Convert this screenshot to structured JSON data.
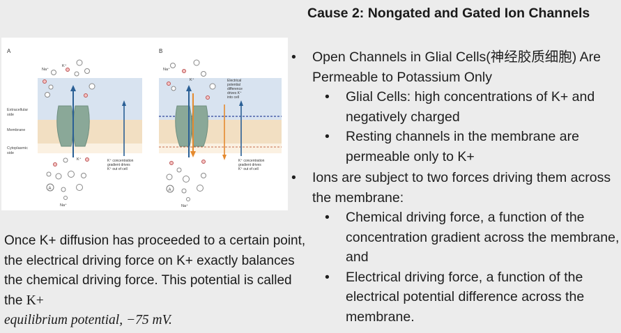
{
  "title": "Cause 2: Nongated and Gated Ion Channels",
  "bullets": [
    {
      "level": 1,
      "text": "Open Channels in Glial Cells(神经胶质细胞) Are Permeable to Potassium Only"
    },
    {
      "level": 2,
      "text": "Glial Cells: high concentrations of K+ and negatively charged"
    },
    {
      "level": 2,
      "text": "Resting channels in the membrane are permeable only to K+"
    },
    {
      "level": 1,
      "text": "Ions are subject to two forces driving them across the membrane:"
    },
    {
      "level": 2,
      "text": "Chemical driving force, a function of the concentration gradient across the membrane, and"
    },
    {
      "level": 2,
      "text": "Electrical driving force, a function of the electrical potential difference across the membrane."
    }
  ],
  "caption": {
    "line1": "Once K+ diffusion has proceeded to a certain point, the electrical driving force on K+ exactly balances the chemical driving force. This potential is called the",
    "kplus": "K+",
    "italic": "equilibrium potential, −75 mV."
  },
  "diagram": {
    "panel_a": "A",
    "panel_b": "B",
    "extracellular_label": [
      "Extracellular",
      "side"
    ],
    "membrane_label": "Membrane",
    "cytoplasmic_label": [
      "Cytoplasmic",
      "side"
    ],
    "ion_na": "Na⁺",
    "ion_k": "K⁺",
    "ion_cl": "Cl⁻",
    "ion_a": "A",
    "chem_note": [
      "K⁺ concentration",
      "gradient drives",
      "K⁺ out of cell"
    ],
    "elec_note": [
      "Electrical",
      "potential",
      "difference",
      "drives K⁺",
      "into cell"
    ],
    "colors": {
      "extracellular": "#d8e3f0",
      "membrane": "#f2dfc2",
      "channel": "#8aa898",
      "arrow_blue": "#2a5f95",
      "arrow_orange": "#e58a2e"
    }
  }
}
